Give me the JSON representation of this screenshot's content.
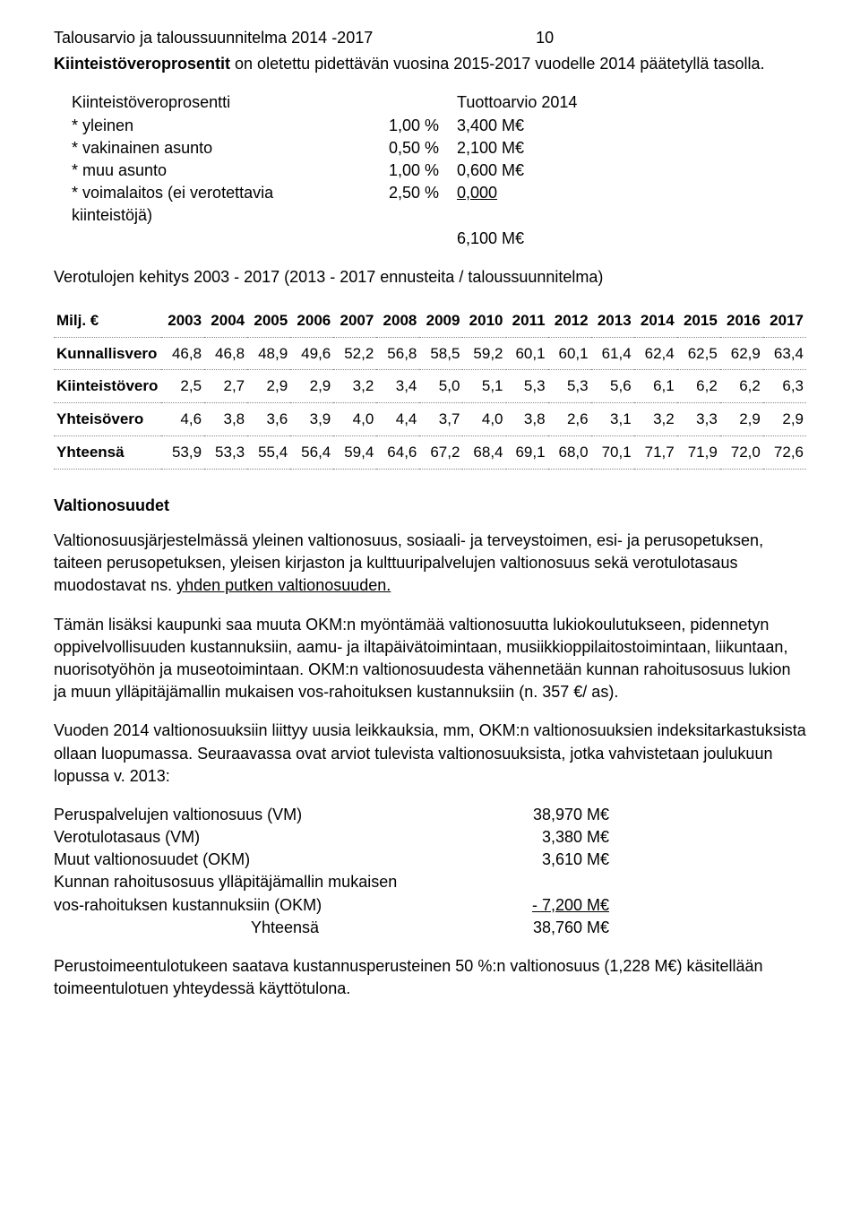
{
  "header": {
    "doc_title": "Talousarvio ja taloussuunnitelma 2014 -2017",
    "page_number": "10"
  },
  "intro": {
    "line1_bold": "Kiinteistöveroprosentit",
    "line1_rest": " on oletettu pidettävän vuosina 2015-2017 vuodelle 2014 päätetyllä tasolla."
  },
  "tax_block": {
    "header_left": "Kiinteistöveroprosentti",
    "header_right": "Tuottoarvio 2014",
    "rows": [
      {
        "label": "* yleinen",
        "pct": "1,00 %",
        "amt": "3,400 M€"
      },
      {
        "label": "* vakinainen asunto",
        "pct": "0,50 %",
        "amt": "2,100 M€"
      },
      {
        "label": "* muu asunto",
        "pct": "1,00 %",
        "amt": "0,600 M€"
      },
      {
        "label": "* voimalaitos (ei verotettavia kiinteistöjä)",
        "pct": "2,50 %",
        "amt_u": "0,000"
      }
    ],
    "total": "6,100 M€"
  },
  "growth_line": "Verotulojen  kehitys 2003 - 2017    (2013 - 2017 ennusteita / taloussuunnitelma)",
  "table": {
    "head": [
      "Milj. €",
      "2003",
      "2004",
      "2005",
      "2006",
      "2007",
      "2008",
      "2009",
      "2010",
      "2011",
      "2012",
      "2013",
      "2014",
      "2015",
      "2016",
      "2017"
    ],
    "rows": [
      [
        "Kunnallisvero",
        "46,8",
        "46,8",
        "48,9",
        "49,6",
        "52,2",
        "56,8",
        "58,5",
        "59,2",
        "60,1",
        "60,1",
        "61,4",
        "62,4",
        "62,5",
        "62,9",
        "63,4"
      ],
      [
        "Kiinteistövero",
        "2,5",
        "2,7",
        "2,9",
        "2,9",
        "3,2",
        "3,4",
        "5,0",
        "5,1",
        "5,3",
        "5,3",
        "5,6",
        "6,1",
        "6,2",
        "6,2",
        "6,3"
      ],
      [
        "Yhteisövero",
        "4,6",
        "3,8",
        "3,6",
        "3,9",
        "4,0",
        "4,4",
        "3,7",
        "4,0",
        "3,8",
        "2,6",
        "3,1",
        "3,2",
        "3,3",
        "2,9",
        "2,9"
      ],
      [
        "Yhteensä",
        "53,9",
        "53,3",
        "55,4",
        "56,4",
        "59,4",
        "64,6",
        "67,2",
        "68,4",
        "69,1",
        "68,0",
        "70,1",
        "71,7",
        "71,9",
        "72,0",
        "72,6"
      ]
    ]
  },
  "valtionosuudet": {
    "heading": "Valtionosuudet",
    "p1_a": "Valtionosuusjärjestelmässä yleinen valtionosuus, sosiaali- ja terveystoimen, esi- ja perusopetuksen, taiteen perusopetuksen, yleisen kirjaston ja kulttuuripalvelujen valtionosuus sekä verotulotasaus  muodostavat ns. ",
    "p1_u": "yhden putken valtionosuuden.",
    "p2": "Tämän lisäksi kaupunki saa muuta OKM:n myöntämää valtionosuutta lukiokoulutukseen, pidennetyn oppivelvollisuuden kustannuksiin, aamu- ja iltapäivätoimintaan, musiikkioppilaitostoimintaan, liikuntaan, nuorisotyöhön ja museotoimintaan. OKM:n valtionosuudesta vähennetään kunnan rahoitusosuus  lukion ja muun ylläpitäjämallin mukaisen vos-rahoituksen kustannuksiin (n. 357 €/ as).",
    "p3": "Vuoden 2014 valtionosuuksiin liittyy uusia leikkauksia, mm, OKM:n valtionosuuksien indeksitarkastuksista ollaan luopumassa.  Seuraavassa ovat arviot  tulevista valtionosuuksista, jotka vahvistetaan joulukuun lopussa v. 2013:",
    "vo_rows": [
      {
        "label": "Peruspalvelujen valtionosuus (VM)",
        "val": "38,970 M€"
      },
      {
        "label": "Verotulotasaus (VM)",
        "val": "3,380 M€"
      },
      {
        "label": "Muut valtionosuudet (OKM)",
        "val": "3,610 M€"
      },
      {
        "label": "Kunnan rahoitusosuus ylläpitäjämallin mukaisen",
        "val": ""
      },
      {
        "label": "vos-rahoituksen kustannuksiin (OKM)",
        "val": "- 7,200 M€",
        "underline": true
      }
    ],
    "vo_total_label": "Yhteensä",
    "vo_total_val": "38,760 M€",
    "p4": "Perustoimeentulotukeen saatava kustannusperusteinen 50 %:n valtionosuus (1,228 M€) käsitellään toimeentulotuen yhteydessä käyttötulona."
  }
}
